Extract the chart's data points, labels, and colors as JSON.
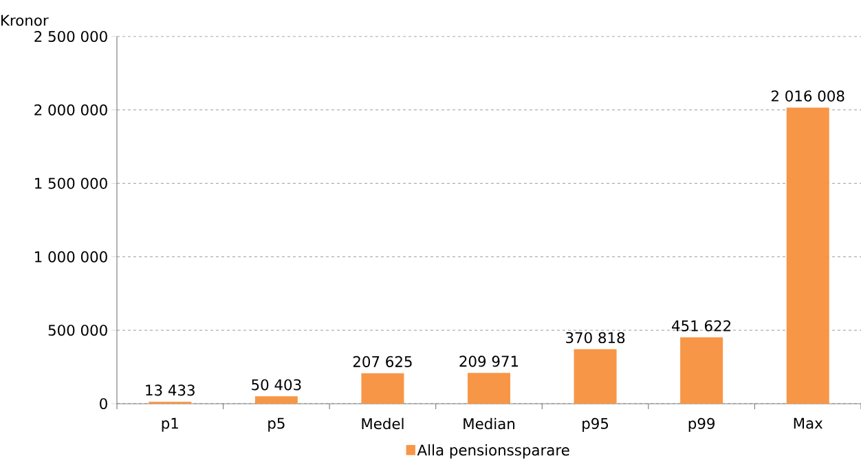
{
  "chart_data": {
    "type": "bar",
    "ylabel": "Kronor",
    "categories": [
      "p1",
      "p5",
      "Medel",
      "Median",
      "p95",
      "p99",
      "Max"
    ],
    "series": [
      {
        "name": "Alla pensionssparare",
        "color": "#f79646",
        "values": [
          13433,
          50403,
          207625,
          209971,
          370818,
          451622,
          2016008
        ],
        "value_labels": [
          "13 433",
          "50 403",
          "207 625",
          "209 971",
          "370 818",
          "451 622",
          "2 016 008"
        ]
      }
    ],
    "ylim": [
      0,
      2500000
    ],
    "yticks": [
      0,
      {
        "value": 500000,
        "label": "500 000"
      },
      {
        "value": 1000000,
        "label": "1 000 000"
      },
      {
        "value": 1500000,
        "label": "1 500 000"
      },
      {
        "value": 2000000,
        "label": "2 000 000"
      },
      {
        "value": 2500000,
        "label": "2 500 000"
      }
    ],
    "grid": "y",
    "legend": "bottom"
  }
}
